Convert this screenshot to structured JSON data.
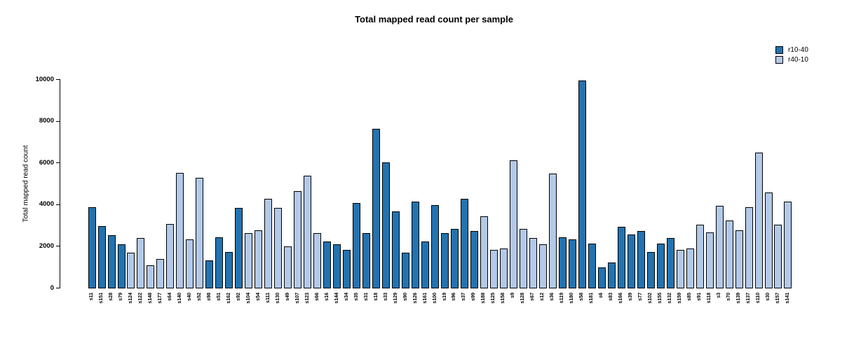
{
  "chart_data": {
    "type": "bar",
    "title": "Total mapped read count per sample",
    "xlabel": "",
    "ylabel": "Total mapped read count",
    "ylim": [
      0,
      10000
    ],
    "yticks": [
      0,
      2000,
      4000,
      6000,
      8000,
      10000
    ],
    "grid": false,
    "legend_position": "top-right",
    "legend": [
      {
        "name": "r10-40",
        "color": "#2273b0"
      },
      {
        "name": "r40-10",
        "color": "#b3c9e8"
      }
    ],
    "bars": [
      {
        "label": "s11",
        "value": 3900,
        "series": "r10-40"
      },
      {
        "label": "s151",
        "value": 3000,
        "series": "r10-40"
      },
      {
        "label": "s28",
        "value": 2550,
        "series": "r10-40"
      },
      {
        "label": "s79",
        "value": 2100,
        "series": "r10-40"
      },
      {
        "label": "s124",
        "value": 1700,
        "series": "r40-10"
      },
      {
        "label": "s122",
        "value": 2400,
        "series": "r40-10"
      },
      {
        "label": "s148",
        "value": 1100,
        "series": "r40-10"
      },
      {
        "label": "s177",
        "value": 1400,
        "series": "r40-10"
      },
      {
        "label": "s64",
        "value": 3100,
        "series": "r40-10"
      },
      {
        "label": "s140",
        "value": 5550,
        "series": "r40-10"
      },
      {
        "label": "s40",
        "value": 2350,
        "series": "r40-10"
      },
      {
        "label": "s52",
        "value": 5300,
        "series": "r40-10"
      },
      {
        "label": "s98",
        "value": 1350,
        "series": "r10-40"
      },
      {
        "label": "s51",
        "value": 2450,
        "series": "r10-40"
      },
      {
        "label": "s162",
        "value": 1750,
        "series": "r10-40"
      },
      {
        "label": "s92",
        "value": 3850,
        "series": "r10-40"
      },
      {
        "label": "s104",
        "value": 2650,
        "series": "r40-10"
      },
      {
        "label": "s54",
        "value": 2800,
        "series": "r40-10"
      },
      {
        "label": "s111",
        "value": 4300,
        "series": "r40-10"
      },
      {
        "label": "s130",
        "value": 3850,
        "series": "r40-10"
      },
      {
        "label": "s49",
        "value": 2000,
        "series": "r40-10"
      },
      {
        "label": "s107",
        "value": 4650,
        "series": "r40-10"
      },
      {
        "label": "s123",
        "value": 5400,
        "series": "r40-10"
      },
      {
        "label": "s66",
        "value": 2650,
        "series": "r40-10"
      },
      {
        "label": "s16",
        "value": 2250,
        "series": "r10-40"
      },
      {
        "label": "s144",
        "value": 2100,
        "series": "r10-40"
      },
      {
        "label": "s34",
        "value": 1850,
        "series": "r10-40"
      },
      {
        "label": "s35",
        "value": 4100,
        "series": "r10-40"
      },
      {
        "label": "s31",
        "value": 2650,
        "series": "r10-40"
      },
      {
        "label": "s18",
        "value": 7650,
        "series": "r10-40"
      },
      {
        "label": "s33",
        "value": 6050,
        "series": "r10-40"
      },
      {
        "label": "s129",
        "value": 3700,
        "series": "r10-40"
      },
      {
        "label": "s90",
        "value": 1700,
        "series": "r10-40"
      },
      {
        "label": "s126",
        "value": 4150,
        "series": "r10-40"
      },
      {
        "label": "s161",
        "value": 2250,
        "series": "r10-40"
      },
      {
        "label": "s100",
        "value": 4000,
        "series": "r10-40"
      },
      {
        "label": "s19",
        "value": 2650,
        "series": "r10-40"
      },
      {
        "label": "s96",
        "value": 2850,
        "series": "r10-40"
      },
      {
        "label": "s37",
        "value": 4300,
        "series": "r10-40"
      },
      {
        "label": "s99",
        "value": 2750,
        "series": "r10-40"
      },
      {
        "label": "s188",
        "value": 3450,
        "series": "r40-10"
      },
      {
        "label": "s125",
        "value": 1850,
        "series": "r40-10"
      },
      {
        "label": "s158",
        "value": 1900,
        "series": "r40-10"
      },
      {
        "label": "s9",
        "value": 6150,
        "series": "r40-10"
      },
      {
        "label": "s128",
        "value": 2850,
        "series": "r40-10"
      },
      {
        "label": "s67",
        "value": 2400,
        "series": "r40-10"
      },
      {
        "label": "s12",
        "value": 2100,
        "series": "r40-10"
      },
      {
        "label": "s36",
        "value": 5500,
        "series": "r40-10"
      },
      {
        "label": "s119",
        "value": 2450,
        "series": "r10-40"
      },
      {
        "label": "s180",
        "value": 2350,
        "series": "r10-40"
      },
      {
        "label": "s58",
        "value": 9950,
        "series": "r10-40"
      },
      {
        "label": "s181",
        "value": 2150,
        "series": "r10-40"
      },
      {
        "label": "s6",
        "value": 1000,
        "series": "r10-40"
      },
      {
        "label": "s83",
        "value": 1250,
        "series": "r10-40"
      },
      {
        "label": "s166",
        "value": 2950,
        "series": "r10-40"
      },
      {
        "label": "s39",
        "value": 2600,
        "series": "r10-40"
      },
      {
        "label": "s77",
        "value": 2750,
        "series": "r10-40"
      },
      {
        "label": "s102",
        "value": 1750,
        "series": "r10-40"
      },
      {
        "label": "s155",
        "value": 2150,
        "series": "r10-40"
      },
      {
        "label": "s132",
        "value": 2400,
        "series": "r10-40"
      },
      {
        "label": "s159",
        "value": 1850,
        "series": "r40-10"
      },
      {
        "label": "s85",
        "value": 1900,
        "series": "r40-10"
      },
      {
        "label": "s91",
        "value": 3050,
        "series": "r40-10"
      },
      {
        "label": "s118",
        "value": 2700,
        "series": "r40-10"
      },
      {
        "label": "s3",
        "value": 3950,
        "series": "r40-10"
      },
      {
        "label": "s70",
        "value": 3250,
        "series": "r40-10"
      },
      {
        "label": "s139",
        "value": 2800,
        "series": "r40-10"
      },
      {
        "label": "s137",
        "value": 3900,
        "series": "r40-10"
      },
      {
        "label": "s110",
        "value": 6500,
        "series": "r40-10"
      },
      {
        "label": "s30",
        "value": 4600,
        "series": "r40-10"
      },
      {
        "label": "s157",
        "value": 3050,
        "series": "r40-10"
      },
      {
        "label": "s141",
        "value": 4150,
        "series": "r40-10"
      }
    ]
  }
}
